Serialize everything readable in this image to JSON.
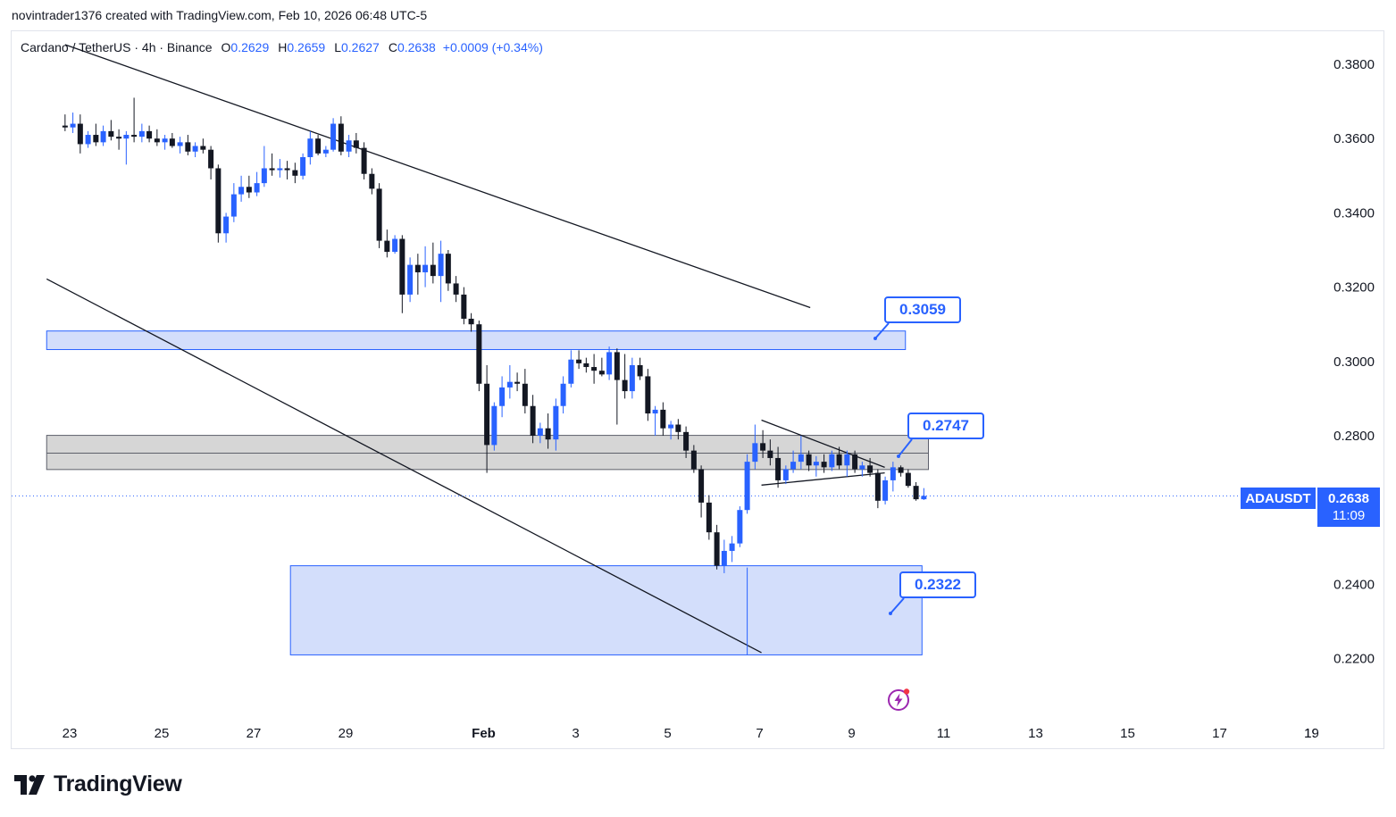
{
  "credit": "novintrader1376 created with TradingView.com, Feb 10, 2026 06:48 UTC-5",
  "legend": {
    "symbol": "Cardano / TetherUS · 4h · Binance",
    "o_label": "O",
    "o": "0.2629",
    "h_label": "H",
    "h": "0.2659",
    "l_label": "L",
    "l": "0.2627",
    "c_label": "C",
    "c": "0.2638",
    "change": "+0.0009 (+0.34%)"
  },
  "price_badge": {
    "symbol": "ADAUSDT",
    "price": "0.2638",
    "countdown": "11:09"
  },
  "callouts": [
    {
      "id": "upper",
      "text": "0.3059"
    },
    {
      "id": "middle",
      "text": "0.2747"
    },
    {
      "id": "lower",
      "text": "0.2322"
    }
  ],
  "branding": {
    "logo_text": "TradingView"
  },
  "colors": {
    "up": "#2962ff",
    "down": "#131722",
    "zone_blue_fill": "#d1dcfb",
    "zone_blue_stroke": "#2962ff",
    "zone_gray_fill": "#d6d6d6",
    "zone_gray_stroke": "#5d606b"
  },
  "chart_data": {
    "type": "candlestick",
    "symbol": "ADAUSDT",
    "timeframe": "4h",
    "exchange": "Binance",
    "y_axis": {
      "ticks": [
        "0.3800",
        "0.3600",
        "0.3400",
        "0.3200",
        "0.3000",
        "0.2800",
        "0.2600",
        "0.2400",
        "0.2200"
      ],
      "ylim": [
        0.2085,
        0.387
      ],
      "position": "right"
    },
    "x_axis": {
      "labels": [
        "23",
        "25",
        "27",
        "29",
        "Feb",
        "3",
        "5",
        "7",
        "9",
        "11",
        "13",
        "15",
        "17",
        "19"
      ],
      "label_days": [
        23,
        25,
        27,
        29,
        32,
        34,
        36,
        38,
        40,
        42,
        44,
        46,
        48,
        50
      ],
      "day_reference": "Jan 23 = 23, Feb 1 = 32"
    },
    "current_price": 0.2638,
    "price_line": "dotted",
    "candles": [
      {
        "d": 22.9,
        "o": 0.3635,
        "h": 0.3665,
        "l": 0.362,
        "c": 0.363
      },
      {
        "d": 23.07,
        "o": 0.363,
        "h": 0.367,
        "l": 0.3615,
        "c": 0.364
      },
      {
        "d": 23.23,
        "o": 0.364,
        "h": 0.3665,
        "l": 0.356,
        "c": 0.3585
      },
      {
        "d": 23.4,
        "o": 0.3585,
        "h": 0.362,
        "l": 0.3575,
        "c": 0.361
      },
      {
        "d": 23.57,
        "o": 0.361,
        "h": 0.364,
        "l": 0.358,
        "c": 0.359
      },
      {
        "d": 23.73,
        "o": 0.359,
        "h": 0.3635,
        "l": 0.358,
        "c": 0.362
      },
      {
        "d": 23.9,
        "o": 0.362,
        "h": 0.365,
        "l": 0.3595,
        "c": 0.3605
      },
      {
        "d": 24.07,
        "o": 0.3605,
        "h": 0.3625,
        "l": 0.357,
        "c": 0.36
      },
      {
        "d": 24.23,
        "o": 0.36,
        "h": 0.362,
        "l": 0.353,
        "c": 0.361
      },
      {
        "d": 24.4,
        "o": 0.361,
        "h": 0.371,
        "l": 0.359,
        "c": 0.3605
      },
      {
        "d": 24.57,
        "o": 0.3605,
        "h": 0.364,
        "l": 0.359,
        "c": 0.362
      },
      {
        "d": 24.73,
        "o": 0.362,
        "h": 0.3635,
        "l": 0.359,
        "c": 0.36
      },
      {
        "d": 24.9,
        "o": 0.36,
        "h": 0.3625,
        "l": 0.358,
        "c": 0.359
      },
      {
        "d": 25.07,
        "o": 0.359,
        "h": 0.361,
        "l": 0.357,
        "c": 0.36
      },
      {
        "d": 25.23,
        "o": 0.36,
        "h": 0.3615,
        "l": 0.3575,
        "c": 0.358
      },
      {
        "d": 25.4,
        "o": 0.358,
        "h": 0.3605,
        "l": 0.356,
        "c": 0.359
      },
      {
        "d": 25.57,
        "o": 0.359,
        "h": 0.361,
        "l": 0.3555,
        "c": 0.3565
      },
      {
        "d": 25.73,
        "o": 0.3565,
        "h": 0.359,
        "l": 0.355,
        "c": 0.358
      },
      {
        "d": 25.9,
        "o": 0.358,
        "h": 0.36,
        "l": 0.356,
        "c": 0.357
      },
      {
        "d": 26.07,
        "o": 0.357,
        "h": 0.358,
        "l": 0.349,
        "c": 0.352
      },
      {
        "d": 26.23,
        "o": 0.352,
        "h": 0.353,
        "l": 0.332,
        "c": 0.3345
      },
      {
        "d": 26.4,
        "o": 0.3345,
        "h": 0.34,
        "l": 0.332,
        "c": 0.339
      },
      {
        "d": 26.57,
        "o": 0.339,
        "h": 0.348,
        "l": 0.3375,
        "c": 0.345
      },
      {
        "d": 26.73,
        "o": 0.345,
        "h": 0.35,
        "l": 0.343,
        "c": 0.347
      },
      {
        "d": 26.9,
        "o": 0.347,
        "h": 0.35,
        "l": 0.344,
        "c": 0.3455
      },
      {
        "d": 27.07,
        "o": 0.3455,
        "h": 0.351,
        "l": 0.3445,
        "c": 0.348
      },
      {
        "d": 27.23,
        "o": 0.348,
        "h": 0.358,
        "l": 0.347,
        "c": 0.352
      },
      {
        "d": 27.4,
        "o": 0.352,
        "h": 0.356,
        "l": 0.35,
        "c": 0.3515
      },
      {
        "d": 27.57,
        "o": 0.3515,
        "h": 0.3545,
        "l": 0.3495,
        "c": 0.352
      },
      {
        "d": 27.73,
        "o": 0.352,
        "h": 0.354,
        "l": 0.349,
        "c": 0.3515
      },
      {
        "d": 27.9,
        "o": 0.3515,
        "h": 0.3535,
        "l": 0.348,
        "c": 0.35
      },
      {
        "d": 28.07,
        "o": 0.35,
        "h": 0.356,
        "l": 0.349,
        "c": 0.355
      },
      {
        "d": 28.23,
        "o": 0.355,
        "h": 0.362,
        "l": 0.353,
        "c": 0.36
      },
      {
        "d": 28.4,
        "o": 0.36,
        "h": 0.361,
        "l": 0.3555,
        "c": 0.356
      },
      {
        "d": 28.57,
        "o": 0.356,
        "h": 0.358,
        "l": 0.355,
        "c": 0.357
      },
      {
        "d": 28.73,
        "o": 0.357,
        "h": 0.3655,
        "l": 0.3565,
        "c": 0.364
      },
      {
        "d": 28.9,
        "o": 0.364,
        "h": 0.366,
        "l": 0.3555,
        "c": 0.3565
      },
      {
        "d": 29.07,
        "o": 0.3565,
        "h": 0.361,
        "l": 0.355,
        "c": 0.3595
      },
      {
        "d": 29.23,
        "o": 0.3595,
        "h": 0.3615,
        "l": 0.356,
        "c": 0.3575
      },
      {
        "d": 29.4,
        "o": 0.3575,
        "h": 0.359,
        "l": 0.349,
        "c": 0.3505
      },
      {
        "d": 29.57,
        "o": 0.3505,
        "h": 0.352,
        "l": 0.345,
        "c": 0.3465
      },
      {
        "d": 29.73,
        "o": 0.3465,
        "h": 0.348,
        "l": 0.3305,
        "c": 0.3325
      },
      {
        "d": 29.9,
        "o": 0.3325,
        "h": 0.3355,
        "l": 0.328,
        "c": 0.3295
      },
      {
        "d": 30.07,
        "o": 0.3295,
        "h": 0.334,
        "l": 0.329,
        "c": 0.333
      },
      {
        "d": 30.23,
        "o": 0.333,
        "h": 0.334,
        "l": 0.313,
        "c": 0.318
      },
      {
        "d": 30.4,
        "o": 0.318,
        "h": 0.328,
        "l": 0.316,
        "c": 0.326
      },
      {
        "d": 30.57,
        "o": 0.326,
        "h": 0.329,
        "l": 0.318,
        "c": 0.324
      },
      {
        "d": 30.73,
        "o": 0.324,
        "h": 0.331,
        "l": 0.32,
        "c": 0.326
      },
      {
        "d": 30.9,
        "o": 0.326,
        "h": 0.332,
        "l": 0.321,
        "c": 0.323
      },
      {
        "d": 31.07,
        "o": 0.323,
        "h": 0.3325,
        "l": 0.316,
        "c": 0.329
      },
      {
        "d": 31.23,
        "o": 0.329,
        "h": 0.33,
        "l": 0.319,
        "c": 0.321
      },
      {
        "d": 31.4,
        "o": 0.321,
        "h": 0.323,
        "l": 0.316,
        "c": 0.318
      },
      {
        "d": 31.57,
        "o": 0.318,
        "h": 0.32,
        "l": 0.31,
        "c": 0.3115
      },
      {
        "d": 31.73,
        "o": 0.3115,
        "h": 0.313,
        "l": 0.308,
        "c": 0.31
      },
      {
        "d": 31.9,
        "o": 0.31,
        "h": 0.311,
        "l": 0.292,
        "c": 0.294
      },
      {
        "d": 32.07,
        "o": 0.294,
        "h": 0.299,
        "l": 0.27,
        "c": 0.2775
      },
      {
        "d": 32.23,
        "o": 0.2775,
        "h": 0.289,
        "l": 0.276,
        "c": 0.288
      },
      {
        "d": 32.4,
        "o": 0.288,
        "h": 0.296,
        "l": 0.285,
        "c": 0.293
      },
      {
        "d": 32.57,
        "o": 0.293,
        "h": 0.299,
        "l": 0.29,
        "c": 0.2945
      },
      {
        "d": 32.73,
        "o": 0.2945,
        "h": 0.297,
        "l": 0.292,
        "c": 0.294
      },
      {
        "d": 32.9,
        "o": 0.294,
        "h": 0.298,
        "l": 0.286,
        "c": 0.288
      },
      {
        "d": 33.07,
        "o": 0.288,
        "h": 0.291,
        "l": 0.278,
        "c": 0.28
      },
      {
        "d": 33.23,
        "o": 0.28,
        "h": 0.2835,
        "l": 0.278,
        "c": 0.282
      },
      {
        "d": 33.4,
        "o": 0.282,
        "h": 0.286,
        "l": 0.2765,
        "c": 0.279
      },
      {
        "d": 33.57,
        "o": 0.279,
        "h": 0.29,
        "l": 0.276,
        "c": 0.288
      },
      {
        "d": 33.73,
        "o": 0.288,
        "h": 0.296,
        "l": 0.286,
        "c": 0.294
      },
      {
        "d": 33.9,
        "o": 0.294,
        "h": 0.303,
        "l": 0.293,
        "c": 0.3005
      },
      {
        "d": 34.07,
        "o": 0.3005,
        "h": 0.303,
        "l": 0.298,
        "c": 0.2995
      },
      {
        "d": 34.23,
        "o": 0.2995,
        "h": 0.301,
        "l": 0.297,
        "c": 0.2985
      },
      {
        "d": 34.4,
        "o": 0.2985,
        "h": 0.302,
        "l": 0.294,
        "c": 0.2975
      },
      {
        "d": 34.57,
        "o": 0.2975,
        "h": 0.301,
        "l": 0.296,
        "c": 0.2965
      },
      {
        "d": 34.73,
        "o": 0.2965,
        "h": 0.304,
        "l": 0.295,
        "c": 0.3025
      },
      {
        "d": 34.9,
        "o": 0.3025,
        "h": 0.3035,
        "l": 0.283,
        "c": 0.295
      },
      {
        "d": 35.07,
        "o": 0.295,
        "h": 0.302,
        "l": 0.29,
        "c": 0.292
      },
      {
        "d": 35.23,
        "o": 0.292,
        "h": 0.301,
        "l": 0.29,
        "c": 0.299
      },
      {
        "d": 35.4,
        "o": 0.299,
        "h": 0.301,
        "l": 0.295,
        "c": 0.296
      },
      {
        "d": 35.57,
        "o": 0.296,
        "h": 0.298,
        "l": 0.284,
        "c": 0.286
      },
      {
        "d": 35.73,
        "o": 0.286,
        "h": 0.288,
        "l": 0.28,
        "c": 0.287
      },
      {
        "d": 35.9,
        "o": 0.287,
        "h": 0.289,
        "l": 0.28,
        "c": 0.282
      },
      {
        "d": 36.07,
        "o": 0.282,
        "h": 0.284,
        "l": 0.279,
        "c": 0.283
      },
      {
        "d": 36.23,
        "o": 0.283,
        "h": 0.2845,
        "l": 0.279,
        "c": 0.281
      },
      {
        "d": 36.4,
        "o": 0.281,
        "h": 0.2825,
        "l": 0.274,
        "c": 0.276
      },
      {
        "d": 36.57,
        "o": 0.276,
        "h": 0.2775,
        "l": 0.27,
        "c": 0.271
      },
      {
        "d": 36.73,
        "o": 0.271,
        "h": 0.272,
        "l": 0.258,
        "c": 0.262
      },
      {
        "d": 36.9,
        "o": 0.262,
        "h": 0.264,
        "l": 0.252,
        "c": 0.254
      },
      {
        "d": 37.07,
        "o": 0.254,
        "h": 0.256,
        "l": 0.244,
        "c": 0.245
      },
      {
        "d": 37.23,
        "o": 0.245,
        "h": 0.252,
        "l": 0.243,
        "c": 0.249
      },
      {
        "d": 37.4,
        "o": 0.249,
        "h": 0.253,
        "l": 0.246,
        "c": 0.251
      },
      {
        "d": 37.57,
        "o": 0.251,
        "h": 0.261,
        "l": 0.25,
        "c": 0.26
      },
      {
        "d": 37.73,
        "o": 0.26,
        "h": 0.275,
        "l": 0.259,
        "c": 0.273
      },
      {
        "d": 37.9,
        "o": 0.273,
        "h": 0.283,
        "l": 0.271,
        "c": 0.278
      },
      {
        "d": 38.07,
        "o": 0.278,
        "h": 0.2815,
        "l": 0.274,
        "c": 0.276
      },
      {
        "d": 38.23,
        "o": 0.276,
        "h": 0.279,
        "l": 0.272,
        "c": 0.274
      },
      {
        "d": 38.4,
        "o": 0.274,
        "h": 0.277,
        "l": 0.266,
        "c": 0.268
      },
      {
        "d": 38.57,
        "o": 0.268,
        "h": 0.272,
        "l": 0.267,
        "c": 0.271
      },
      {
        "d": 38.73,
        "o": 0.271,
        "h": 0.276,
        "l": 0.27,
        "c": 0.273
      },
      {
        "d": 38.9,
        "o": 0.273,
        "h": 0.28,
        "l": 0.271,
        "c": 0.275
      },
      {
        "d": 39.07,
        "o": 0.275,
        "h": 0.276,
        "l": 0.2705,
        "c": 0.272
      },
      {
        "d": 39.23,
        "o": 0.272,
        "h": 0.2745,
        "l": 0.269,
        "c": 0.273
      },
      {
        "d": 39.4,
        "o": 0.273,
        "h": 0.275,
        "l": 0.27,
        "c": 0.2715
      },
      {
        "d": 39.57,
        "o": 0.2715,
        "h": 0.276,
        "l": 0.2705,
        "c": 0.275
      },
      {
        "d": 39.73,
        "o": 0.275,
        "h": 0.277,
        "l": 0.271,
        "c": 0.272
      },
      {
        "d": 39.9,
        "o": 0.272,
        "h": 0.276,
        "l": 0.269,
        "c": 0.275
      },
      {
        "d": 40.07,
        "o": 0.275,
        "h": 0.276,
        "l": 0.27,
        "c": 0.271
      },
      {
        "d": 40.23,
        "o": 0.271,
        "h": 0.273,
        "l": 0.269,
        "c": 0.272
      },
      {
        "d": 40.4,
        "o": 0.272,
        "h": 0.274,
        "l": 0.269,
        "c": 0.27
      },
      {
        "d": 40.57,
        "o": 0.27,
        "h": 0.271,
        "l": 0.2605,
        "c": 0.2625
      },
      {
        "d": 40.73,
        "o": 0.2625,
        "h": 0.269,
        "l": 0.2615,
        "c": 0.268
      },
      {
        "d": 40.9,
        "o": 0.268,
        "h": 0.273,
        "l": 0.265,
        "c": 0.2715
      },
      {
        "d": 41.07,
        "o": 0.2715,
        "h": 0.272,
        "l": 0.269,
        "c": 0.27
      },
      {
        "d": 41.23,
        "o": 0.27,
        "h": 0.271,
        "l": 0.266,
        "c": 0.2665
      },
      {
        "d": 41.4,
        "o": 0.2665,
        "h": 0.2675,
        "l": 0.2625,
        "c": 0.2629
      },
      {
        "d": 41.57,
        "o": 0.2629,
        "h": 0.2659,
        "l": 0.2627,
        "c": 0.2638
      }
    ],
    "zones": [
      {
        "name": "upper supply zone",
        "d0": 22.5,
        "d1": 41.17,
        "y0": 0.3032,
        "y1": 0.3082,
        "style": "blue"
      },
      {
        "name": "middle resistance zone",
        "d0": 22.5,
        "d1": 41.67,
        "y0": 0.2709,
        "y1": 0.2801,
        "style": "gray",
        "midline": 0.2753
      },
      {
        "name": "lower demand zone",
        "d0": 27.8,
        "d1": 41.53,
        "y0": 0.221,
        "y1": 0.245,
        "style": "blue"
      }
    ],
    "trendlines": [
      {
        "name": "upper channel line",
        "d0": 22.9,
        "y0": 0.3853,
        "d1": 39.1,
        "y1": 0.3145
      },
      {
        "name": "lower channel line",
        "d0": 22.5,
        "y0": 0.3222,
        "d1": 38.04,
        "y1": 0.2216
      },
      {
        "name": "triangle upper",
        "d0": 38.04,
        "y0": 0.2842,
        "d1": 40.72,
        "y1": 0.2715
      },
      {
        "name": "triangle lower",
        "d0": 38.04,
        "y0": 0.2667,
        "d1": 40.72,
        "y1": 0.27
      },
      {
        "name": "vertical marker",
        "d0": 37.73,
        "y0": 0.2445,
        "d1": 37.73,
        "y1": 0.221
      }
    ]
  }
}
